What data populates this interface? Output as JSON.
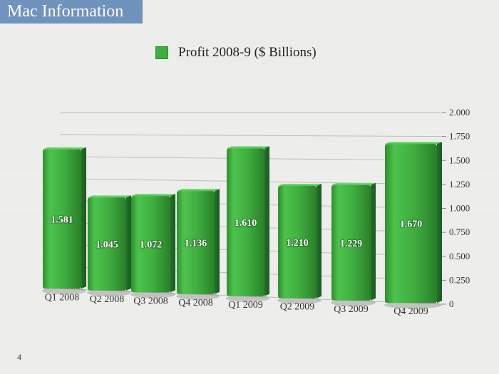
{
  "slide": {
    "title": "Mac Information",
    "page_number": "4"
  },
  "colors": {
    "title_bg": "#6f93bd",
    "bar": "#3fae3f"
  },
  "chart_data": {
    "type": "bar",
    "legend_position": "top",
    "grid": true,
    "categories": [
      "Q1 2008",
      "Q2 2008",
      "Q3 2008",
      "Q4 2008",
      "Q1 2009",
      "Q2 2009",
      "Q3 2009",
      "Q4 2009"
    ],
    "series": [
      {
        "name": "Profit 2008-9 ($ Billions)",
        "values": [
          1.581,
          1.045,
          1.072,
          1.136,
          1.61,
          1.21,
          1.229,
          1.67
        ],
        "labels": [
          "1.581",
          "1.045",
          "1.072",
          "1.136",
          "1.610",
          "1.210",
          "1.229",
          "1.670"
        ]
      }
    ],
    "ylim": [
      0,
      2
    ],
    "yticks": [
      "0",
      "0.250",
      "0.500",
      "0.750",
      "1.000",
      "1.250",
      "1.500",
      "1.750",
      "2.000"
    ]
  }
}
